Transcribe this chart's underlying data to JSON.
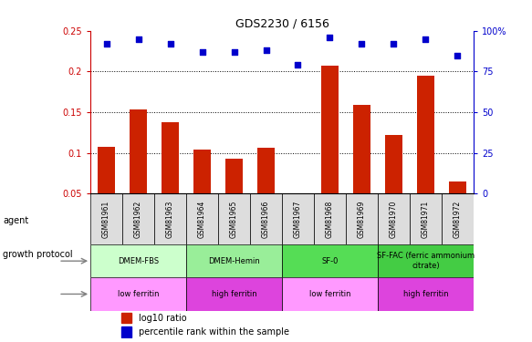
{
  "title": "GDS2230 / 6156",
  "samples": [
    "GSM81961",
    "GSM81962",
    "GSM81963",
    "GSM81964",
    "GSM81965",
    "GSM81966",
    "GSM81967",
    "GSM81968",
    "GSM81969",
    "GSM81970",
    "GSM81971",
    "GSM81972"
  ],
  "log10_ratio": [
    0.107,
    0.153,
    0.138,
    0.104,
    0.093,
    0.106,
    0.04,
    0.207,
    0.159,
    0.122,
    0.195,
    0.065
  ],
  "percentile_rank": [
    92,
    95,
    92,
    87,
    87,
    88,
    79,
    96,
    92,
    92,
    95,
    85
  ],
  "ylim_left": [
    0.05,
    0.25
  ],
  "ylim_right": [
    0,
    100
  ],
  "yticks_left": [
    0.05,
    0.1,
    0.15,
    0.2,
    0.25
  ],
  "yticks_right": [
    0,
    25,
    50,
    75,
    100
  ],
  "agent_groups": [
    {
      "label": "DMEM-FBS",
      "start": 0,
      "end": 2,
      "color": "#ccffcc"
    },
    {
      "label": "DMEM-Hemin",
      "start": 3,
      "end": 5,
      "color": "#99ee99"
    },
    {
      "label": "SF-0",
      "start": 6,
      "end": 8,
      "color": "#55dd55"
    },
    {
      "label": "SF-FAC (ferric ammonium\ncitrate)",
      "start": 9,
      "end": 11,
      "color": "#44cc44"
    }
  ],
  "growth_groups": [
    {
      "label": "low ferritin",
      "start": 0,
      "end": 2,
      "color": "#ff99ff"
    },
    {
      "label": "high ferritin",
      "start": 3,
      "end": 5,
      "color": "#dd44dd"
    },
    {
      "label": "low ferritin",
      "start": 6,
      "end": 8,
      "color": "#ff99ff"
    },
    {
      "label": "high ferritin",
      "start": 9,
      "end": 11,
      "color": "#dd44dd"
    }
  ],
  "bar_color": "#cc2200",
  "dot_color": "#0000cc",
  "left_axis_color": "#cc0000",
  "right_axis_color": "#0000cc",
  "sample_box_color": "#dddddd"
}
